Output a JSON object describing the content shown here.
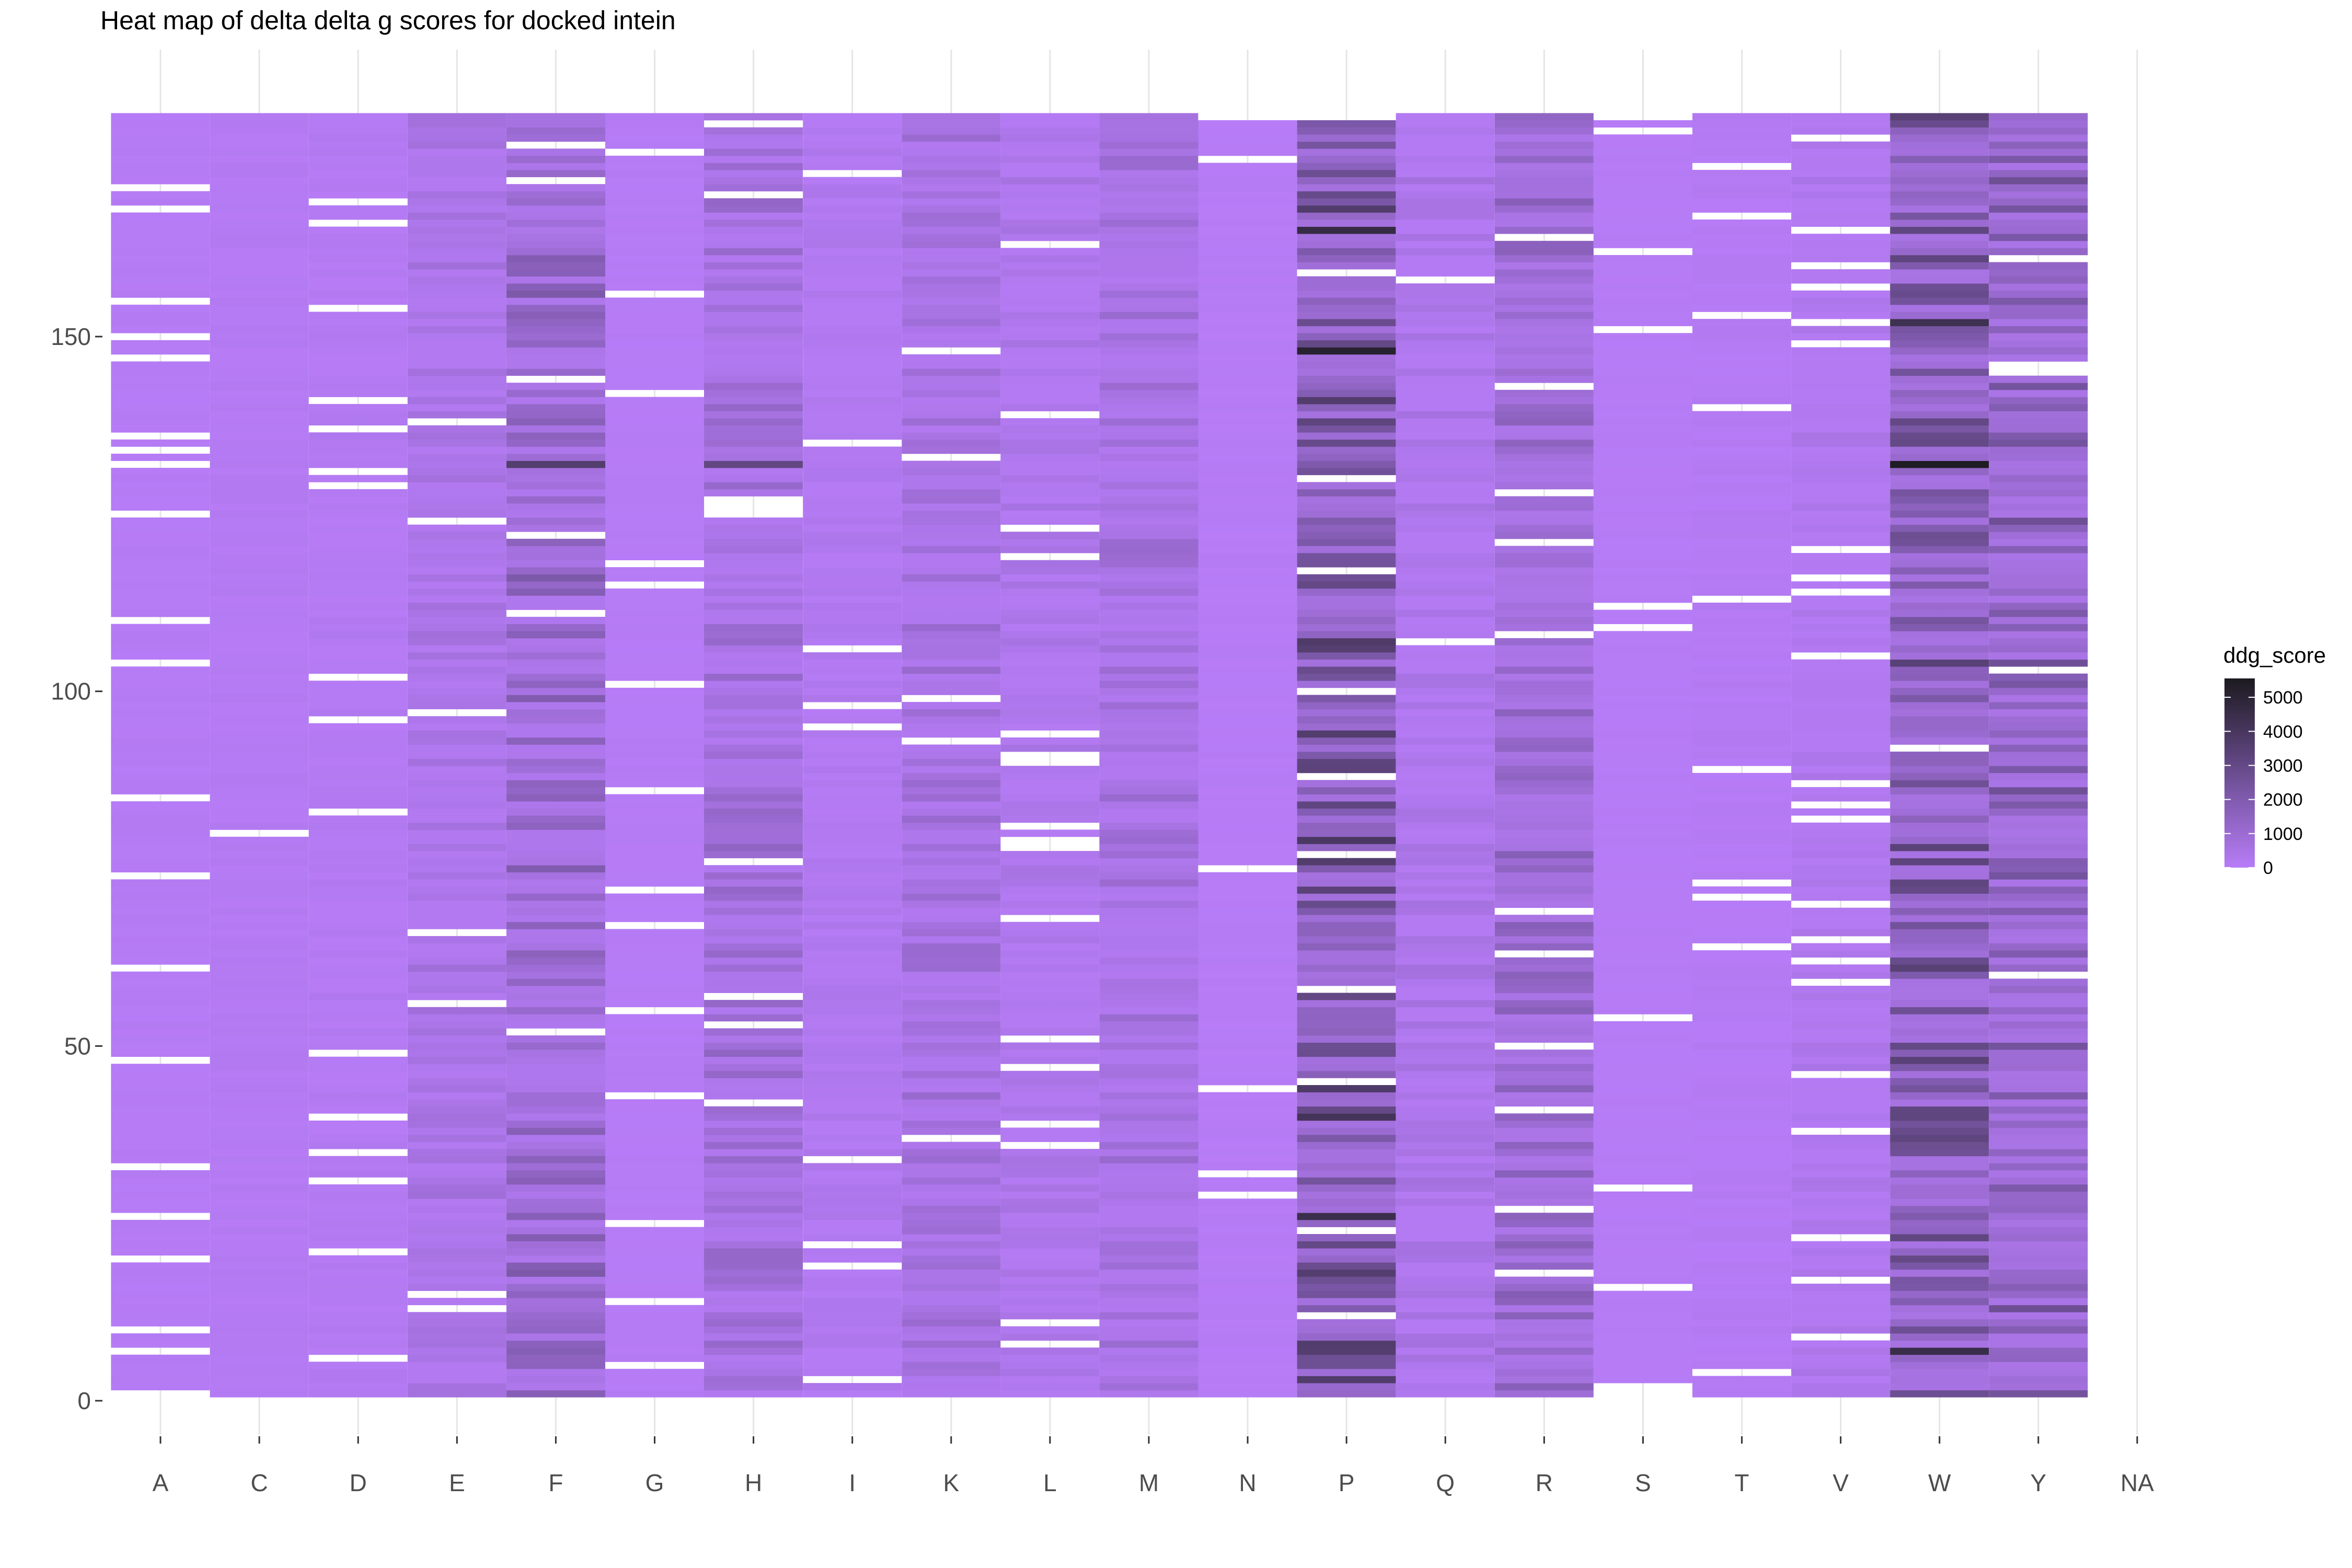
{
  "chart_data": {
    "type": "heatmap",
    "title": "Heat map of delta delta g scores for docked intein",
    "xlabel": "",
    "ylabel": "",
    "categories": [
      "A",
      "C",
      "D",
      "E",
      "F",
      "G",
      "H",
      "I",
      "K",
      "L",
      "M",
      "N",
      "P",
      "Q",
      "R",
      "S",
      "T",
      "V",
      "W",
      "Y",
      "NA"
    ],
    "y_range": [
      1,
      181
    ],
    "ylim": [
      0,
      181
    ],
    "y_ticks": [
      0,
      50,
      100,
      150
    ],
    "grid": true,
    "legend": {
      "title": "ddg_score",
      "ticks": [
        0,
        1000,
        2000,
        3000,
        4000,
        5000
      ],
      "range": [
        0,
        5400
      ],
      "position": "right",
      "colors": {
        "low": "#b77cf7",
        "mid": "#7a57a6",
        "high": "#1c1a1f"
      }
    },
    "columns": [
      {
        "residue": "A",
        "y_min": 2,
        "y_max": 181,
        "base": 80,
        "variation": 120,
        "missing": [
          7,
          10,
          20,
          26,
          33,
          48,
          61,
          74,
          85,
          104,
          110,
          125,
          132,
          134,
          136,
          147,
          150,
          155,
          168,
          171
        ]
      },
      {
        "residue": "C",
        "y_min": 1,
        "y_max": 181,
        "base": 150,
        "variation": 150,
        "missing": [
          80
        ]
      },
      {
        "residue": "D",
        "y_min": 1,
        "y_max": 181,
        "base": 150,
        "variation": 200,
        "missing": [
          6,
          21,
          31,
          35,
          40,
          49,
          83,
          96,
          102,
          129,
          131,
          137,
          141,
          154,
          166,
          169
        ]
      },
      {
        "residue": "E",
        "y_min": 1,
        "y_max": 181,
        "base": 500,
        "variation": 700,
        "missing": [
          13,
          15,
          56,
          66,
          97,
          124,
          138
        ]
      },
      {
        "residue": "F",
        "y_min": 1,
        "y_max": 181,
        "base": 900,
        "variation": 1800,
        "missing": [
          52,
          111,
          122,
          144,
          172,
          177
        ]
      },
      {
        "residue": "G",
        "y_min": 1,
        "y_max": 181,
        "base": 60,
        "variation": 80,
        "missing": [
          5,
          14,
          25,
          43,
          55,
          67,
          72,
          86,
          101,
          115,
          118,
          142,
          156,
          176
        ]
      },
      {
        "residue": "H",
        "y_min": 1,
        "y_max": 181,
        "base": 700,
        "variation": 1200,
        "missing": [
          42,
          53,
          57,
          76,
          125,
          126,
          127,
          170,
          180
        ]
      },
      {
        "residue": "I",
        "y_min": 1,
        "y_max": 181,
        "base": 250,
        "variation": 300,
        "missing": [
          3,
          19,
          22,
          34,
          95,
          98,
          106,
          135,
          173
        ]
      },
      {
        "residue": "K",
        "y_min": 1,
        "y_max": 181,
        "base": 700,
        "variation": 900,
        "missing": [
          37,
          93,
          99,
          133,
          148
        ]
      },
      {
        "residue": "L",
        "y_min": 1,
        "y_max": 181,
        "base": 350,
        "variation": 500,
        "missing": [
          8,
          11,
          36,
          39,
          47,
          51,
          68,
          78,
          79,
          81,
          90,
          91,
          94,
          119,
          123,
          139,
          163
        ]
      },
      {
        "residue": "M",
        "y_min": 1,
        "y_max": 181,
        "base": 700,
        "variation": 900,
        "missing": []
      },
      {
        "residue": "N",
        "y_min": 1,
        "y_max": 180,
        "base": 50,
        "variation": 60,
        "missing": [
          29,
          32,
          44,
          75,
          175
        ]
      },
      {
        "residue": "P",
        "y_min": 1,
        "y_max": 180,
        "base": 2200,
        "variation": 3000,
        "missing": [
          12,
          24,
          45,
          58,
          77,
          88,
          100,
          117,
          130,
          159
        ]
      },
      {
        "residue": "Q",
        "y_min": 1,
        "y_max": 181,
        "base": 300,
        "variation": 600,
        "missing": [
          107,
          158
        ]
      },
      {
        "residue": "R",
        "y_min": 1,
        "y_max": 181,
        "base": 1300,
        "variation": 1400,
        "missing": [
          18,
          27,
          41,
          50,
          63,
          69,
          108,
          121,
          128,
          143,
          164
        ]
      },
      {
        "residue": "S",
        "y_min": 2,
        "y_max": 180,
        "base": 60,
        "variation": 70,
        "missing": [
          2,
          16,
          30,
          54,
          109,
          112,
          151,
          162,
          179
        ]
      },
      {
        "residue": "T",
        "y_min": 1,
        "y_max": 181,
        "base": 100,
        "variation": 150,
        "missing": [
          4,
          64,
          71,
          73,
          89,
          113,
          140,
          153,
          167,
          174
        ]
      },
      {
        "residue": "V",
        "y_min": 1,
        "y_max": 181,
        "base": 300,
        "variation": 400,
        "missing": [
          9,
          17,
          23,
          38,
          46,
          59,
          62,
          65,
          70,
          82,
          84,
          87,
          105,
          114,
          116,
          120,
          149,
          152,
          157,
          160,
          165,
          178
        ]
      },
      {
        "residue": "W",
        "y_min": 1,
        "y_max": 181,
        "base": 1800,
        "variation": 2800,
        "missing": [
          92
        ]
      },
      {
        "residue": "Y",
        "y_min": 1,
        "y_max": 181,
        "base": 1500,
        "variation": 2200,
        "missing": [
          60,
          103,
          145,
          146,
          161
        ]
      }
    ],
    "strong_cells": [
      {
        "residue": "W",
        "row": 132,
        "value": 5300
      },
      {
        "residue": "P",
        "row": 148,
        "value": 5000
      },
      {
        "residue": "P",
        "row": 165,
        "value": 4500
      },
      {
        "residue": "P",
        "row": 26,
        "value": 4300
      },
      {
        "residue": "P",
        "row": 40,
        "value": 4000
      },
      {
        "residue": "P",
        "row": 79,
        "value": 3800
      },
      {
        "residue": "W",
        "row": 152,
        "value": 4200
      },
      {
        "residue": "W",
        "row": 7,
        "value": 4400
      },
      {
        "residue": "F",
        "row": 132,
        "value": 3500
      },
      {
        "residue": "H",
        "row": 132,
        "value": 3000
      }
    ]
  }
}
